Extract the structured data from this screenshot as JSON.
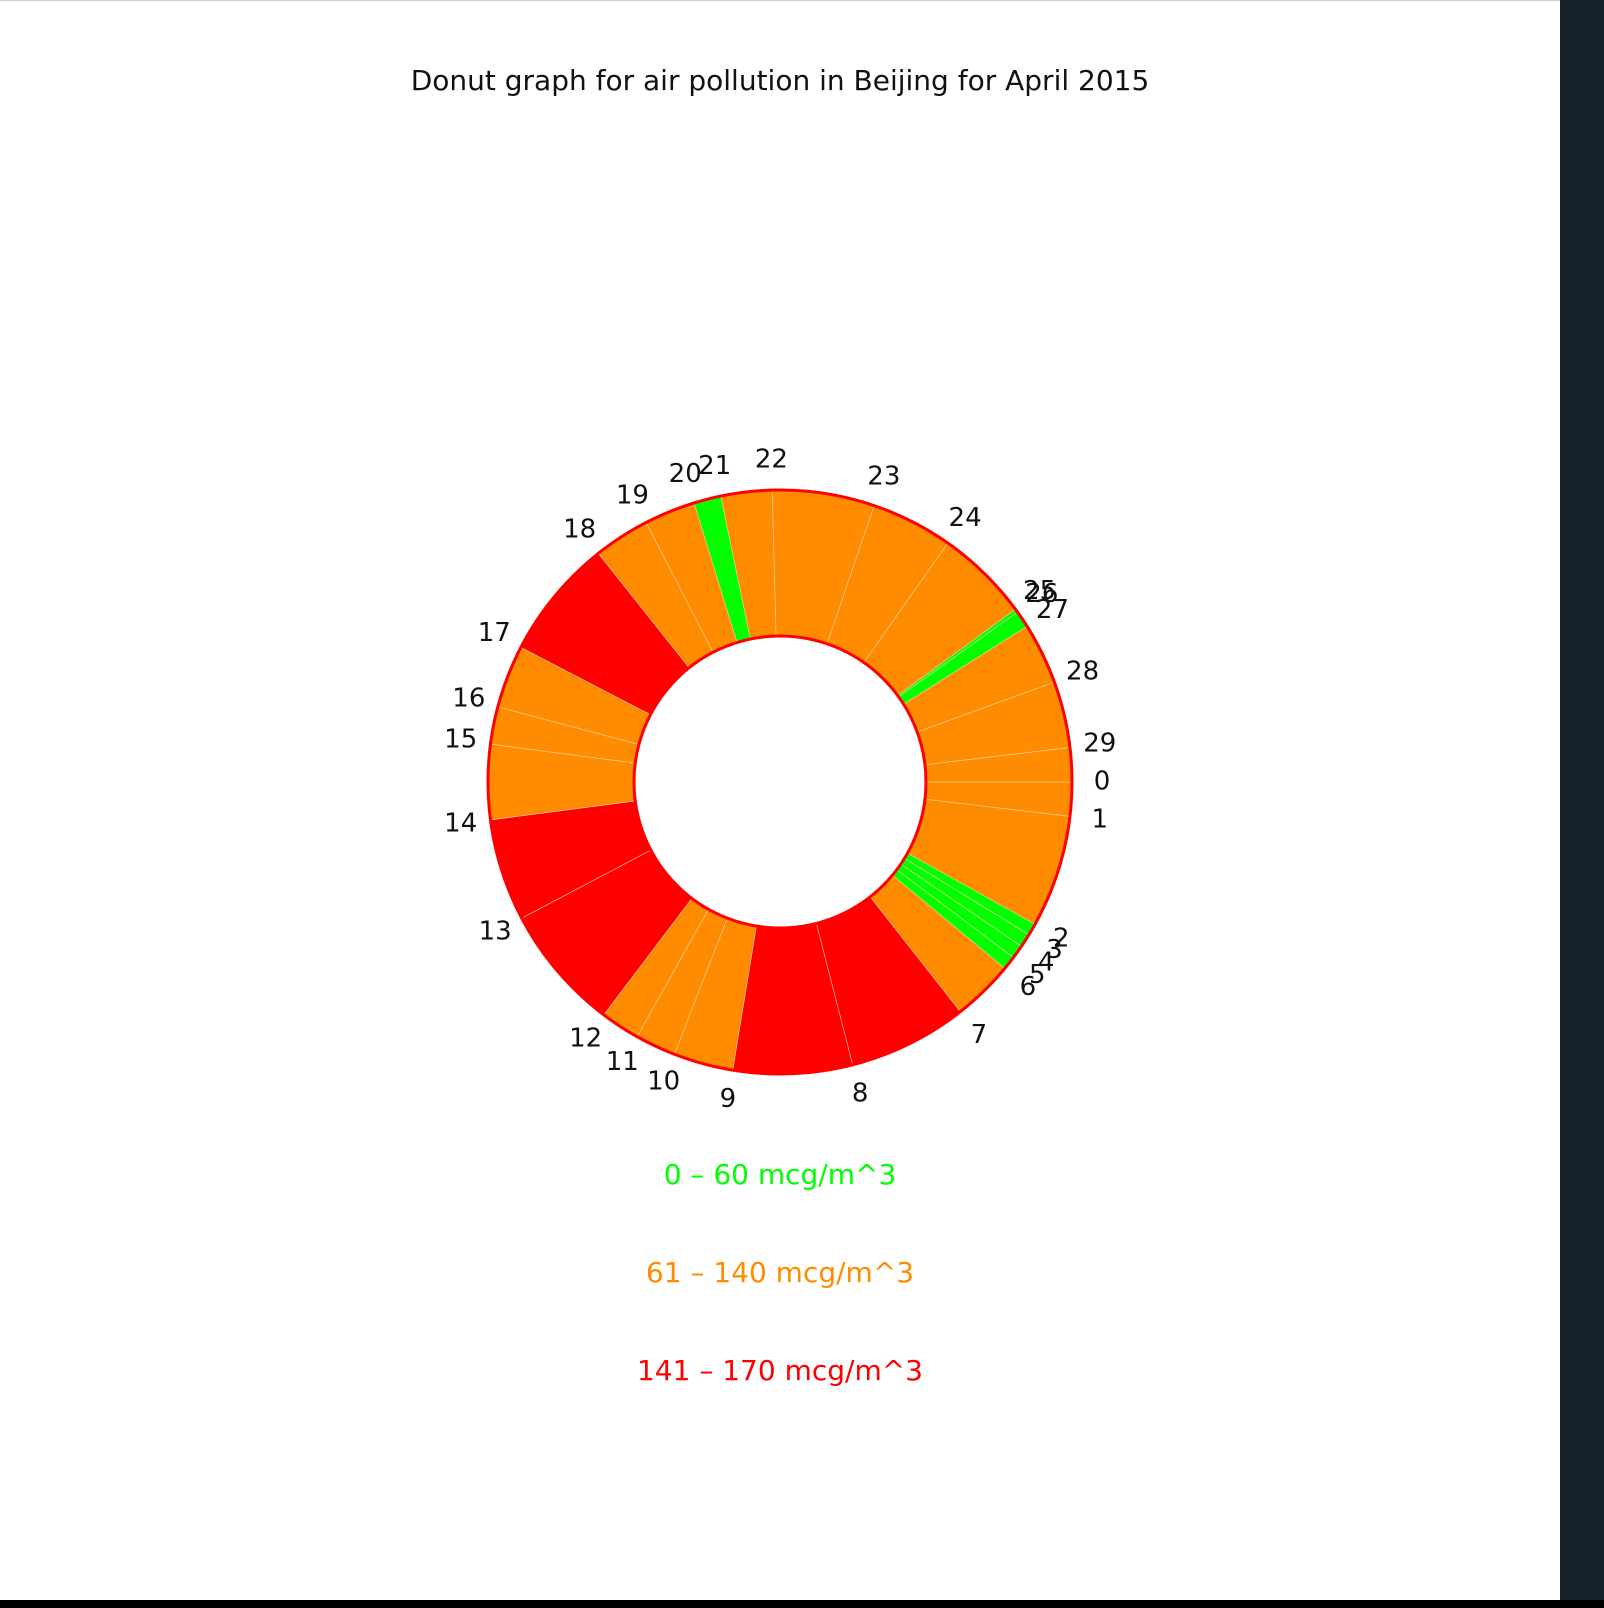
{
  "title": "Donut graph for air pollution in Beijing for April 2015",
  "legend": [
    {
      "label": "0 – 60 mcg/m^3",
      "color": "#00ff00"
    },
    {
      "label": "61 – 140 mcg/m^3",
      "color": "#ff8c00"
    },
    {
      "label": "141 – 170 mcg/m^3",
      "color": "#ff0000"
    }
  ],
  "chart_data": {
    "type": "pie",
    "subtype": "donut",
    "title": "Donut graph for air pollution in Beijing for April 2015",
    "categories": [
      "0",
      "1",
      "2",
      "3",
      "4",
      "5",
      "6",
      "7",
      "8",
      "9",
      "10",
      "11",
      "12",
      "13",
      "14",
      "15",
      "16",
      "17",
      "18",
      "19",
      "20",
      "21",
      "22",
      "23",
      "24",
      "25",
      "26",
      "27",
      "28",
      "29"
    ],
    "values": [
      2.0,
      6.6,
      0.7,
      0.8,
      0.8,
      0.8,
      3.6,
      7.0,
      7.0,
      3.5,
      2.4,
      2.3,
      7.4,
      6.0,
      4.4,
      2.2,
      3.7,
      7.1,
      3.3,
      3.0,
      1.6,
      3.0,
      6.0,
      4.8,
      5.5,
      0.2,
      1.0,
      3.6,
      3.9,
      2.0
    ],
    "category_colors": [
      "#ff8c00",
      "#ff8c00",
      "#00ff00",
      "#00ff00",
      "#00ff00",
      "#00ff00",
      "#ff8c00",
      "#ff0000",
      "#ff0000",
      "#ff8c00",
      "#ff8c00",
      "#ff8c00",
      "#ff0000",
      "#ff0000",
      "#ff8c00",
      "#ff8c00",
      "#ff8c00",
      "#ff0000",
      "#ff8c00",
      "#ff8c00",
      "#00ff00",
      "#ff8c00",
      "#ff8c00",
      "#ff8c00",
      "#ff8c00",
      "#00ff00",
      "#00ff00",
      "#ff8c00",
      "#ff8c00",
      "#ff8c00"
    ],
    "start_category": "0",
    "direction": "clockwise",
    "outline_color": "#ff0000",
    "label_position": "outside",
    "legend_position": "bottom"
  }
}
